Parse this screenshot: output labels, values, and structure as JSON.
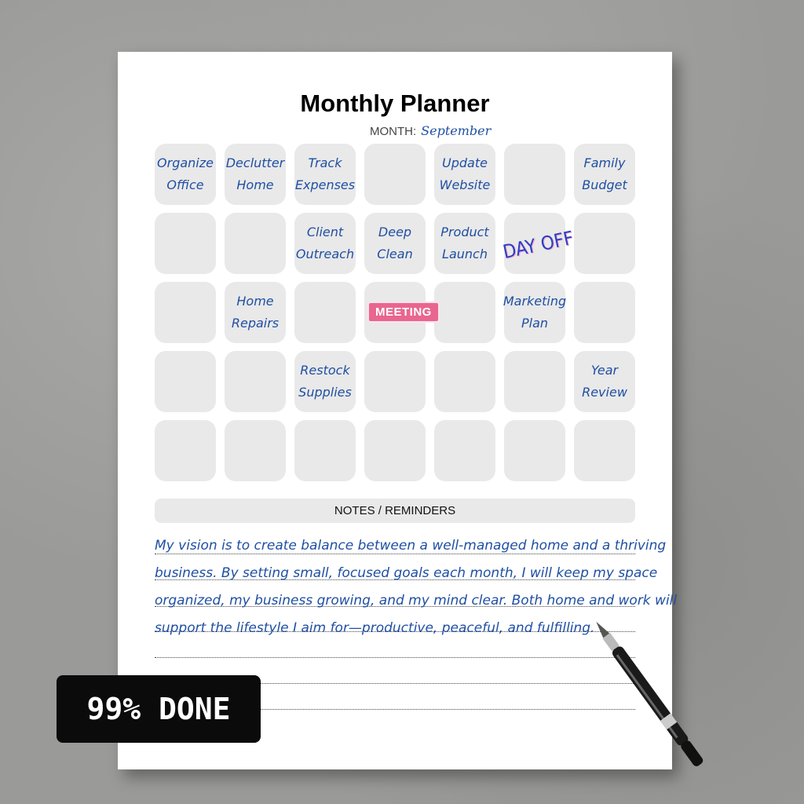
{
  "planner": {
    "title": "Monthly Planner",
    "month_label": "MONTH:",
    "month_value": "September",
    "cells": [
      [
        "Organize",
        "Office"
      ],
      [
        "Declutter",
        "Home"
      ],
      [
        "Track",
        "Expenses"
      ],
      [],
      [
        "Update",
        "Website"
      ],
      [],
      [
        "Family",
        "Budget"
      ],
      [],
      [],
      [
        "Client",
        "Outreach"
      ],
      [
        "Deep",
        "Clean"
      ],
      [
        "Product",
        "Launch"
      ],
      [],
      [],
      [],
      [
        "Home",
        "Repairs"
      ],
      [],
      [],
      [],
      [
        "Marketing",
        "Plan"
      ],
      [],
      [],
      [],
      [
        "Restock",
        "Supplies"
      ],
      [],
      [],
      [],
      [
        "Year",
        "Review"
      ],
      [],
      [],
      [],
      [],
      [],
      [],
      []
    ],
    "stickers": {
      "day_off": "DAY OFF",
      "meeting": "MEETING"
    },
    "notes_header": "NOTES / REMINDERS",
    "notes_lines": [
      "My vision is to create balance between a well-managed home and a thriving",
      "business. By setting small, focused goals each month, I will keep my space",
      "organized, my business growing, and my mind clear. Both home and work will",
      "support the lifestyle I aim for—productive, peaceful, and fulfilling."
    ]
  },
  "badge": {
    "label": "99% DONE"
  },
  "colors": {
    "ink": "#1f4fa3",
    "cell": "#e9e9e9",
    "sticker": "#e8668f",
    "badge": "#0b0b0b"
  }
}
